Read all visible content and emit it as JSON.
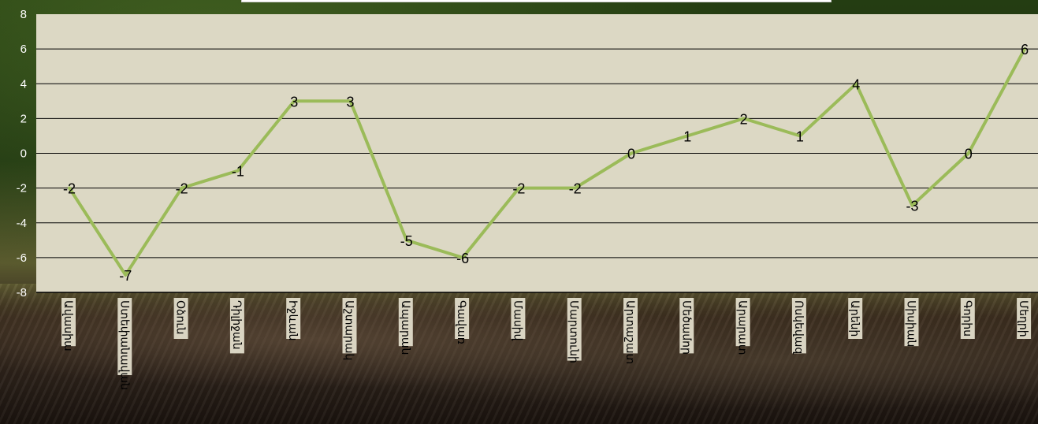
{
  "chart_data": {
    "type": "line",
    "title": "",
    "xlabel": "",
    "ylabel": "",
    "ylim": [
      -8,
      8
    ],
    "yticks": [
      8,
      6,
      4,
      2,
      0,
      -2,
      -4,
      -6,
      -8
    ],
    "grid": true,
    "categories": [
      "Ավասիա",
      "Ստեփանավան",
      "Օձուն",
      "Դիլիջան",
      "Իջևան",
      "Աշտարակ",
      "Ապարան",
      "Գավառ",
      "Մասիվ",
      "Մարտունի",
      "Արտաշատ",
      "Մեծամոր",
      "Արարատ",
      "Ոսկեվազ",
      "Արենի",
      "Սիսիան",
      "Գորիս",
      "Մեղրի"
    ],
    "series": [
      {
        "values": [
          -2,
          -7,
          -2,
          -1,
          3,
          3,
          -5,
          -6,
          -2,
          -2,
          0,
          1,
          2,
          1,
          4,
          -3,
          0,
          6
        ]
      }
    ],
    "colors": {
      "line": "#9bbb59",
      "plot_background": "#dcd8c4",
      "gridline": "#000000",
      "axis_label": "#ffffff",
      "data_label": "#000000",
      "category_label_background": "#e6e2cf"
    }
  }
}
